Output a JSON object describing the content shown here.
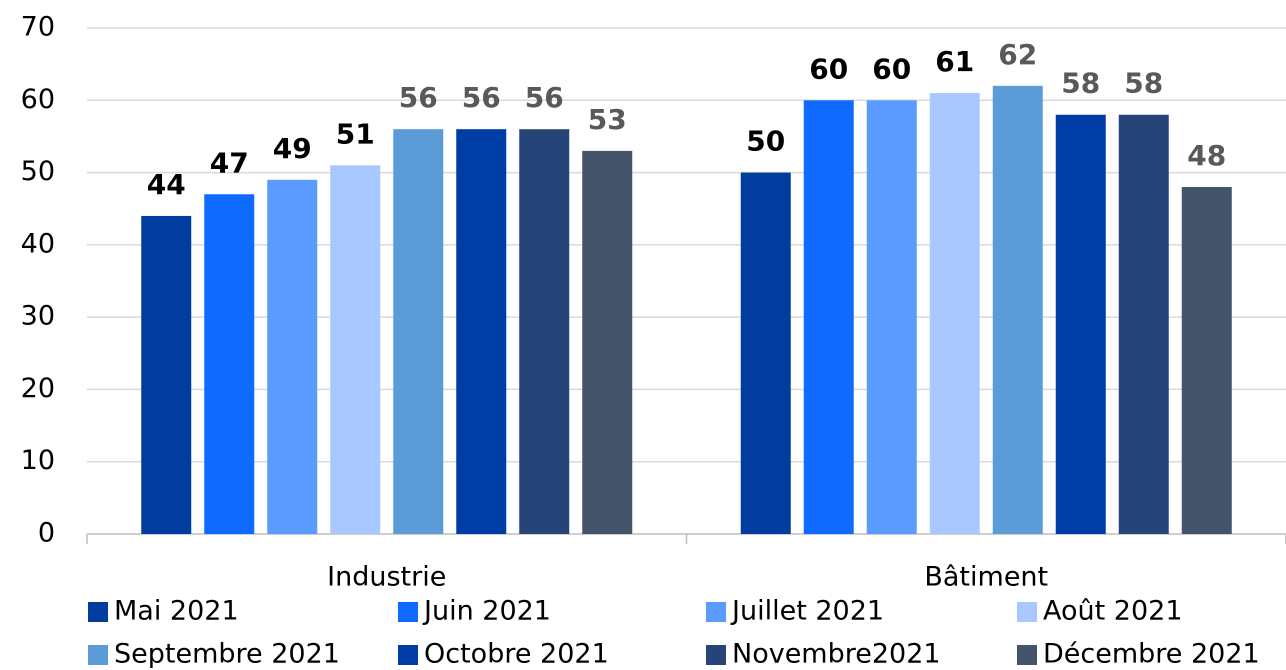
{
  "chart_data": {
    "type": "bar",
    "categories": [
      "Industrie",
      "Bâtiment"
    ],
    "series": [
      {
        "name": "Mai 2021",
        "color": "#003d9e",
        "label_color": "#000000",
        "values": [
          44,
          50
        ]
      },
      {
        "name": "Juin 2021",
        "color": "#0f6bff",
        "label_color": "#000000",
        "values": [
          47,
          60
        ]
      },
      {
        "name": "Juillet 2021",
        "color": "#5b9bff",
        "label_color": "#000000",
        "values": [
          49,
          60
        ]
      },
      {
        "name": "Août 2021",
        "color": "#a9c8ff",
        "label_color": "#000000",
        "values": [
          51,
          61
        ]
      },
      {
        "name": "Septembre 2021",
        "color": "#5a9bd8",
        "label_color": "#595959",
        "values": [
          56,
          62
        ]
      },
      {
        "name": "Octobre 2021",
        "color": "#003ca6",
        "label_color": "#595959",
        "values": [
          56,
          58
        ]
      },
      {
        "name": "Novembre2021",
        "color": "#264478",
        "label_color": "#595959",
        "values": [
          56,
          58
        ]
      },
      {
        "name": "Décembre 2021",
        "color": "#44546a",
        "label_color": "#595959",
        "values": [
          53,
          48
        ]
      }
    ],
    "ylim": [
      0,
      70
    ],
    "yticks": [
      0,
      10,
      20,
      30,
      40,
      50,
      60,
      70
    ],
    "grid": true
  }
}
